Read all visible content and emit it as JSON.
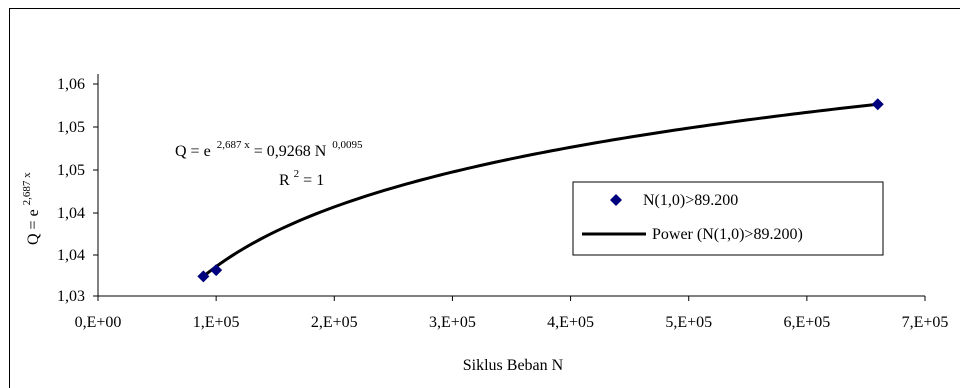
{
  "chart_data": {
    "type": "scatter",
    "xlabel": "Siklus Beban N",
    "ylabel": {
      "base": "Q = e",
      "exponent": "2,687 x"
    },
    "xlim": [
      0,
      700000
    ],
    "ylim": [
      1.03,
      1.06
    ],
    "x_ticks": [
      {
        "value": 0,
        "label": "0,E+00"
      },
      {
        "value": 100000,
        "label": "1,E+05"
      },
      {
        "value": 200000,
        "label": "2,E+05"
      },
      {
        "value": 300000,
        "label": "3,E+05"
      },
      {
        "value": 400000,
        "label": "4,E+05"
      },
      {
        "value": 500000,
        "label": "5,E+05"
      },
      {
        "value": 600000,
        "label": "6,E+05"
      },
      {
        "value": 700000,
        "label": "7,E+05"
      }
    ],
    "y_ticks": [
      {
        "value": 1.03,
        "label": "1,03"
      },
      {
        "value": 1.035,
        "label": "1,04"
      },
      {
        "value": 1.04,
        "label": "1,04"
      },
      {
        "value": 1.045,
        "label": "1,05"
      },
      {
        "value": 1.05,
        "label": "1,05"
      },
      {
        "value": 1.055,
        "label": "1,06"
      }
    ],
    "grid": false,
    "series": [
      {
        "name": "N(1,0)>89.200",
        "kind": "scatter",
        "marker": "diamond",
        "color": "#00007f",
        "points": [
          {
            "x": 89200,
            "y": 1.0328
          },
          {
            "x": 100000,
            "y": 1.0337
          },
          {
            "x": 660000,
            "y": 1.0574
          }
        ]
      },
      {
        "name": "Power (N(1,0)>89.200)",
        "kind": "line",
        "color": "#000000",
        "x_range": [
          89200,
          660000
        ],
        "fit": {
          "a": 0.9268,
          "b": 0.0095
        }
      }
    ],
    "annotations": {
      "equation": {
        "part1": "Q = e",
        "sup1": "2,687 x",
        "part2": " = 0,9268 N",
        "sup2": "0,0095"
      },
      "r2": {
        "base": "R",
        "sup": "2",
        "rest": " = 1"
      }
    },
    "legend_position": "right"
  }
}
